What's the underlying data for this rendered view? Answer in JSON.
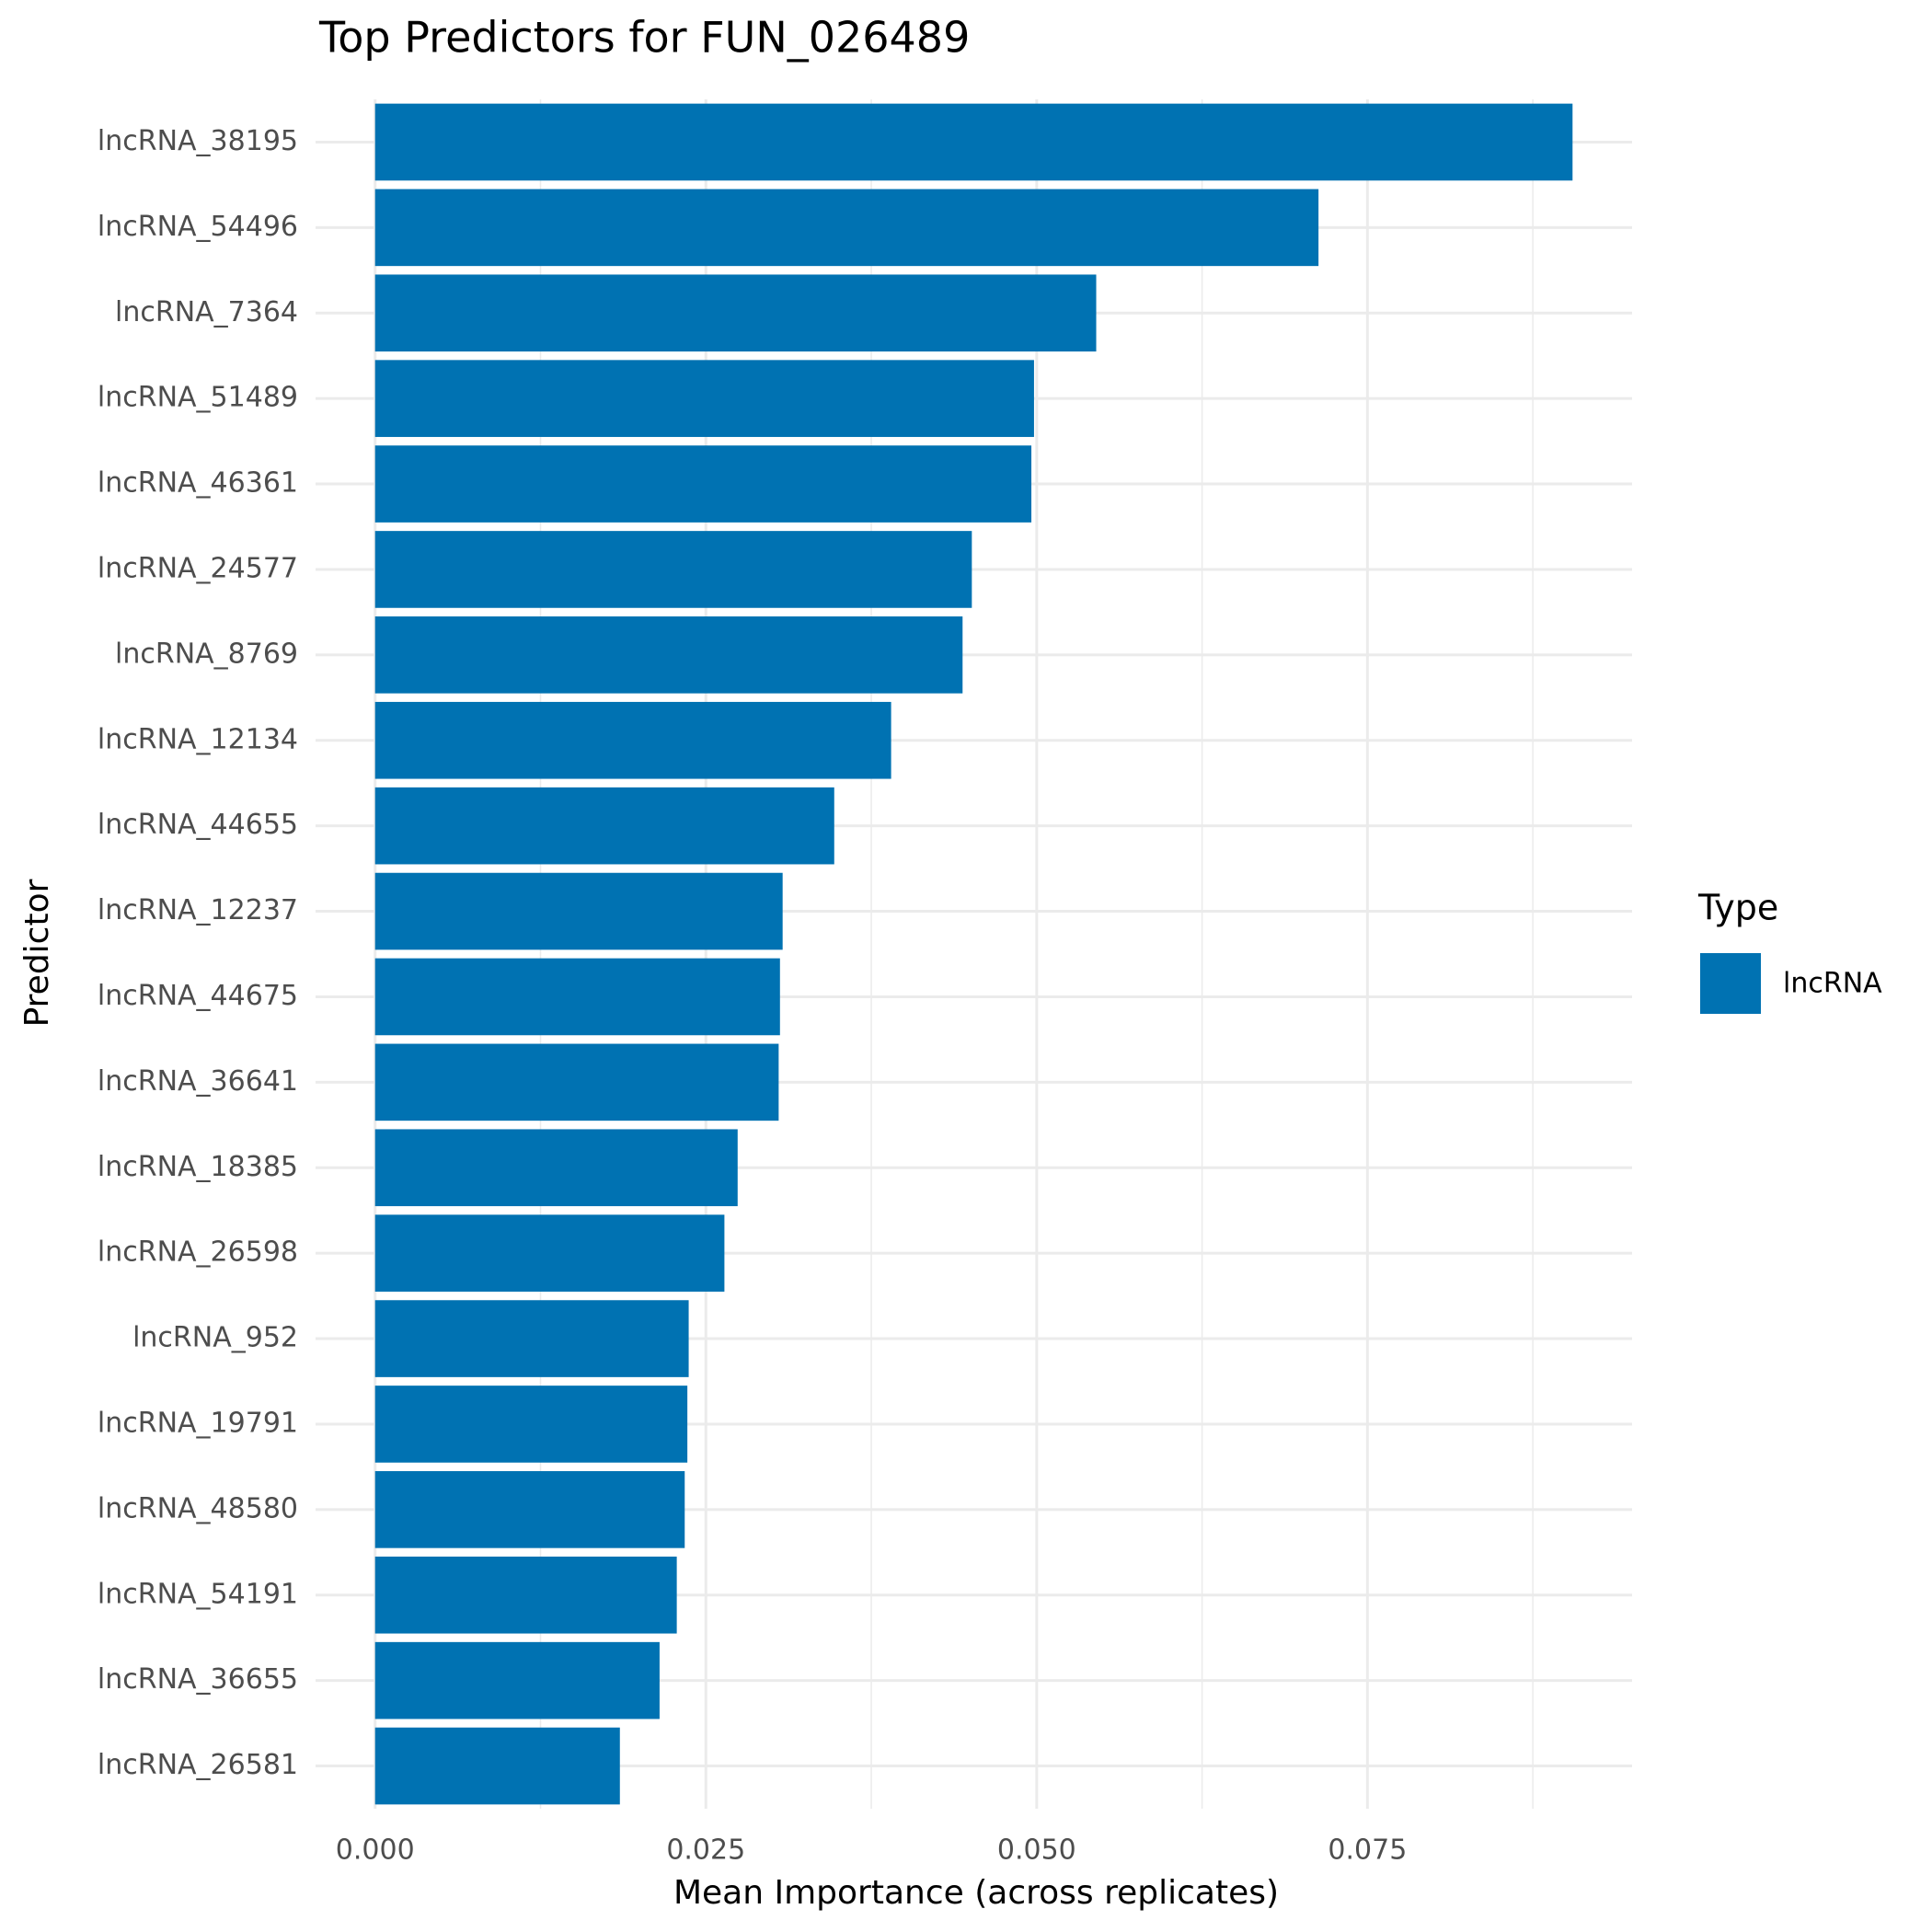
{
  "chart_data": {
    "type": "bar",
    "orientation": "horizontal",
    "title": "Top Predictors for FUN_026489",
    "x_label": "Mean Importance (across replicates)",
    "y_label": "Predictor",
    "categories": [
      "lncRNA_38195",
      "lncRNA_54496",
      "lncRNA_7364",
      "lncRNA_51489",
      "lncRNA_46361",
      "lncRNA_24577",
      "lncRNA_8769",
      "lncRNA_12134",
      "lncRNA_44655",
      "lncRNA_12237",
      "lncRNA_44675",
      "lncRNA_36641",
      "lncRNA_18385",
      "lncRNA_26598",
      "lncRNA_952",
      "lncRNA_19791",
      "lncRNA_48580",
      "lncRNA_54191",
      "lncRNA_36655",
      "lncRNA_26581"
    ],
    "series": [
      {
        "name": "lncRNA",
        "color": "#0072b2",
        "values": [
          0.0905,
          0.0713,
          0.0545,
          0.0498,
          0.0496,
          0.0451,
          0.0444,
          0.039,
          0.0347,
          0.0308,
          0.0306,
          0.0305,
          0.0274,
          0.0264,
          0.0237,
          0.0236,
          0.0234,
          0.0228,
          0.0215,
          0.0185
        ]
      }
    ],
    "legend_title": "Type",
    "legend_position": "right",
    "xlim": [
      -0.0045,
      0.095
    ],
    "xticks": [
      {
        "value": 0,
        "label": "0.000"
      },
      {
        "value": 0.025,
        "label": "0.025"
      },
      {
        "value": 0.05,
        "label": "0.050"
      },
      {
        "value": 0.075,
        "label": "0.075"
      }
    ],
    "minor_xticks": [
      0.0125,
      0.0375,
      0.0625,
      0.0875
    ],
    "grid": true
  }
}
